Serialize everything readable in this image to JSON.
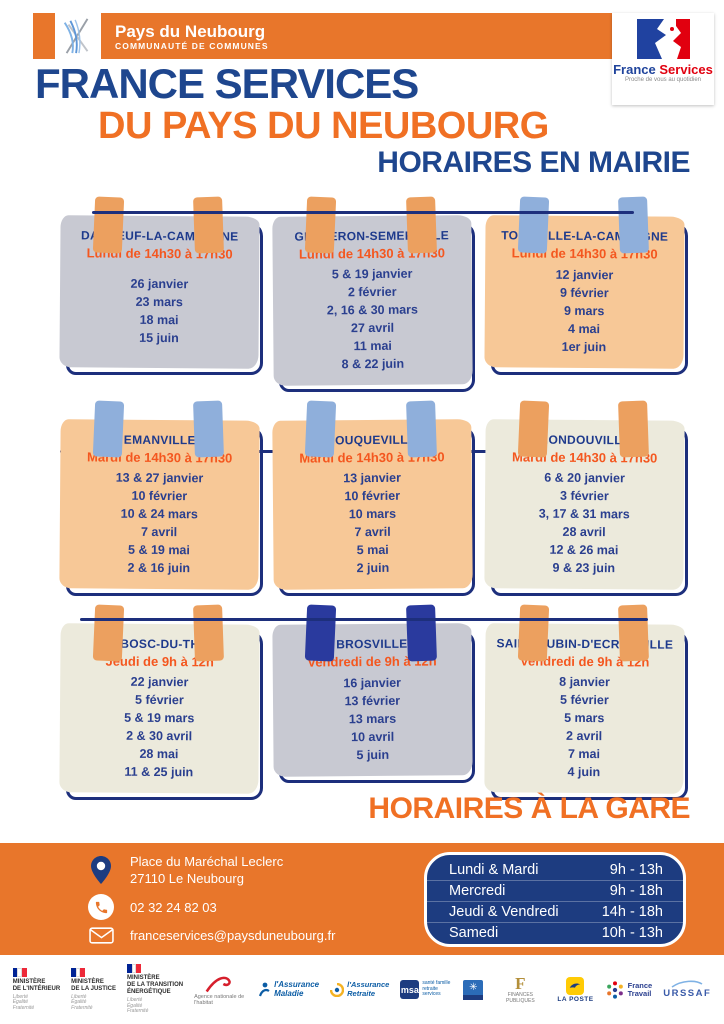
{
  "colors": {
    "band_orange": "#E8762B",
    "accent_orange": "#F07024",
    "schedule_orange": "#F4571F",
    "title_navy": "#1E468E",
    "line_navy": "#1D2F7C",
    "table_navy": "#1D3C80",
    "paper_grey": "#C8C9D2",
    "paper_peach": "#F7C897",
    "paper_cream": "#ECEADC",
    "tape_orange": "#ECA05F",
    "tape_blue": "#8FAFDB",
    "tape_navy": "#2A3A9E"
  },
  "header": {
    "org": {
      "name": "Pays du Neubourg",
      "subtitle": "COMMUNAUTÉ DE COMMUNES"
    },
    "france_services": {
      "word1": "France",
      "word2": "Services",
      "tagline": "Proche de vous au quotidien"
    }
  },
  "titles": {
    "main": "FRANCE SERVICES",
    "sub": "DU PAYS DU NEUBOURG",
    "section_mairie": "HORAIRES EN MAIRIE",
    "section_gare": "HORAIRES À LA GARE"
  },
  "cards": [
    {
      "town": "DAUBEUF-LA-CAMPAGNE",
      "schedule": "Lundi de 14h30 à 17h30",
      "dates": [
        "26 janvier",
        "23 mars",
        "18 mai",
        "15 juin"
      ]
    },
    {
      "town": "GRAVERON-SEMERVILLE",
      "schedule": "Lundi de 14h30 à 17h30",
      "dates": [
        "5 & 19 janvier",
        "2 février",
        "2, 16 & 30 mars",
        "27 avril",
        "11 mai",
        "8 & 22 juin"
      ]
    },
    {
      "town": "TOURVILLE-LA-CAMPAGNE",
      "schedule": "Lundi de 14h30 à 17h30",
      "dates": [
        "12 janvier",
        "9 février",
        "9 mars",
        "4 mai",
        "1er juin"
      ]
    },
    {
      "town": "EMANVILLE",
      "schedule": "Mardi de 14h30 à 17h30",
      "dates": [
        "13 & 27 janvier",
        "10 février",
        "10 & 24 mars",
        "7 avril",
        "5 & 19 mai",
        "2 & 16 juin"
      ]
    },
    {
      "town": "FOUQUEVILLE",
      "schedule": "Mardi de 14h30 à 17h30",
      "dates": [
        "13 janvier",
        "10 février",
        "10 mars",
        "7 avril",
        "5 mai",
        "2 juin"
      ]
    },
    {
      "town": "HONDOUVILLE",
      "schedule": "Mardi de 14h30 à 17h30",
      "dates": [
        "6 & 20 janvier",
        "3 février",
        "3, 17 & 31 mars",
        "28 avril",
        "12 & 26 mai",
        "9 & 23 juin"
      ]
    },
    {
      "town": "LE BOSC-DU-THEIL",
      "schedule": "Jeudi de 9h à 12h",
      "dates": [
        "22 janvier",
        "5 février",
        "5 & 19 mars",
        "2 & 30 avril",
        "28 mai",
        "11 & 25 juin"
      ]
    },
    {
      "town": "BROSVILLE",
      "schedule": "Vendredi de 9h à 12h",
      "dates": [
        "16 janvier",
        "13 février",
        "13 mars",
        "10 avril",
        "5 juin"
      ]
    },
    {
      "town": "SAINT-AUBIN-D'ECROSVILLE",
      "schedule": "Vendredi de 9h à 12h",
      "dates": [
        "8 janvier",
        "5 février",
        "5 mars",
        "2 avril",
        "7 mai",
        "4 juin"
      ]
    }
  ],
  "footer": {
    "address_line1": "Place du Maréchal Leclerc",
    "address_line2": "27110 Le Neubourg",
    "phone": "02 32 24 82 03",
    "email": "franceservices@paysduneubourg.fr",
    "gare_hours": [
      {
        "days": "Lundi & Mardi",
        "time": "9h - 13h"
      },
      {
        "days": "Mercredi",
        "time": "9h - 18h"
      },
      {
        "days": "Jeudi & Vendredi",
        "time": "14h - 18h"
      },
      {
        "days": "Samedi",
        "time": "10h - 13h"
      }
    ]
  },
  "partners": [
    {
      "label": "MINISTÈRE\nDE L'INTÉRIEUR",
      "motto": "Liberté\nÉgalité\nFraternité"
    },
    {
      "label": "MINISTÈRE\nDE LA JUSTICE",
      "motto": "Liberté\nÉgalité\nFraternité"
    },
    {
      "label": "MINISTÈRE\nDE LA TRANSITION\nÉNERGÉTIQUE",
      "motto": "Liberté\nÉgalité\nFraternité"
    },
    {
      "label": "Agence nationale de l'habitat"
    },
    {
      "label": "l'Assurance\nMaladie"
    },
    {
      "label": "l'Assurance\nRetraite"
    },
    {
      "label": "msa",
      "sublabel": "santé famille retraite services"
    },
    {
      "label": ""
    },
    {
      "label": "FINANCES PUBLIQUES"
    },
    {
      "label": "LA POSTE"
    },
    {
      "label": "France\nTravail"
    },
    {
      "label": "URSSAF"
    }
  ]
}
